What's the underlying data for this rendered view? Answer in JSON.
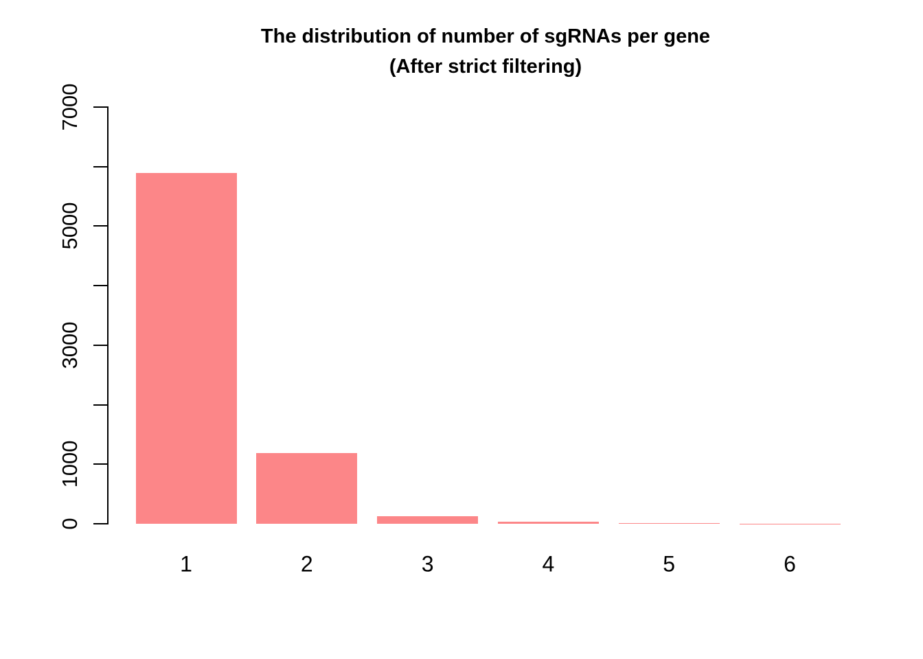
{
  "chart_data": {
    "type": "bar",
    "title": "The distribution of number of sgRNAs per gene (After strict filtering)",
    "title_line1": "The distribution of number of sgRNAs per gene",
    "title_line2": "(After strict filtering)",
    "categories": [
      "1",
      "2",
      "3",
      "4",
      "5",
      "6"
    ],
    "values": [
      5890,
      1190,
      130,
      30,
      6,
      5
    ],
    "xlabel": "",
    "ylabel": "",
    "ylim": [
      0,
      7000
    ],
    "ytick_values": [
      0,
      1000,
      2000,
      3000,
      4000,
      5000,
      6000,
      7000
    ],
    "ytick_labeled": [
      0,
      1000,
      3000,
      5000,
      7000
    ],
    "bar_color": "#FC8688",
    "axis_color": "#000000",
    "text_color": "#000000",
    "grid": false,
    "legend_position": "none"
  }
}
